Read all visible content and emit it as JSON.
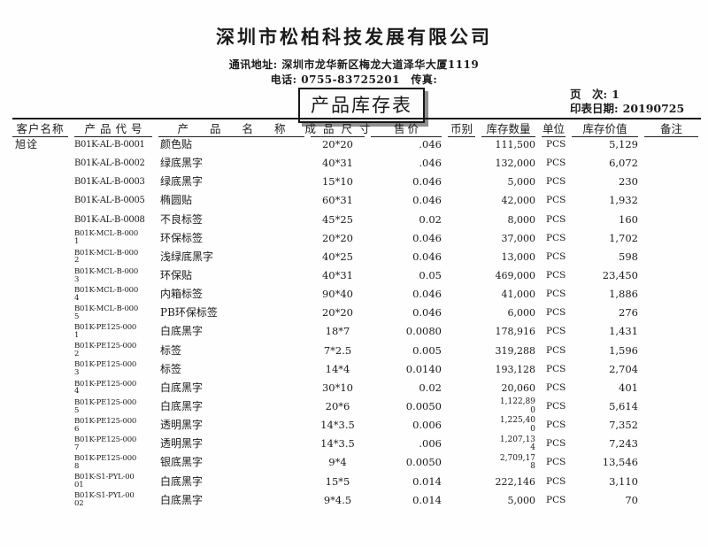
{
  "page": {
    "company": "深圳市松柏科技发展有限公司",
    "address_line": "通讯地址: 深圳市龙华新区梅龙大道泽华大厦1119",
    "phone_line": "电话: 0755-83725201　传真:",
    "title": "产品库存表",
    "page_no_label": "页　次:",
    "page_no": "1",
    "print_date_label": "印表日期:",
    "print_date": "20190725"
  },
  "table": {
    "columns": [
      {
        "key": "customer",
        "label": "客户名称"
      },
      {
        "key": "code",
        "label": "产品代号"
      },
      {
        "key": "name",
        "label": "产品名称"
      },
      {
        "key": "size",
        "label": "成品尺寸"
      },
      {
        "key": "price",
        "label": "售价"
      },
      {
        "key": "currency",
        "label": "币别"
      },
      {
        "key": "qty",
        "label": "库存数量"
      },
      {
        "key": "unit",
        "label": "单位"
      },
      {
        "key": "value",
        "label": "库存价值"
      },
      {
        "key": "remark",
        "label": "备注"
      }
    ],
    "rows": [
      {
        "customer": "旭诠",
        "code_lines": [
          "B01K-AL-B-0001"
        ],
        "name": "颜色贴",
        "size": "20*20",
        "price": ".046",
        "currency": "",
        "qty_lines": [
          "111,500"
        ],
        "unit": "PCS",
        "value": "5,129",
        "remark": ""
      },
      {
        "customer": "",
        "code_lines": [
          "B01K-AL-B-0002"
        ],
        "name": "绿底黑字",
        "size": "40*31",
        "price": ".046",
        "currency": "",
        "qty_lines": [
          "132,000"
        ],
        "unit": "PCS",
        "value": "6,072",
        "remark": ""
      },
      {
        "customer": "",
        "code_lines": [
          "B01K-AL-B-0003"
        ],
        "name": "绿底黑字",
        "size": "15*10",
        "price": "0.046",
        "currency": "",
        "qty_lines": [
          "5,000"
        ],
        "unit": "PCS",
        "value": "230",
        "remark": ""
      },
      {
        "customer": "",
        "code_lines": [
          "B01K-AL-B-0005"
        ],
        "name": "椭圆贴",
        "size": "60*31",
        "price": "0.046",
        "currency": "",
        "qty_lines": [
          "42,000"
        ],
        "unit": "PCS",
        "value": "1,932",
        "remark": ""
      },
      {
        "customer": "",
        "code_lines": [
          "B01K-AL-B-0008"
        ],
        "name": "不良标签",
        "size": "45*25",
        "price": "0.02",
        "currency": "",
        "qty_lines": [
          "8,000"
        ],
        "unit": "PCS",
        "value": "160",
        "remark": ""
      },
      {
        "customer": "",
        "code_lines": [
          "B01K-MCL-B-000",
          "1"
        ],
        "name": "环保标签",
        "size": "20*20",
        "price": "0.046",
        "currency": "",
        "qty_lines": [
          "37,000"
        ],
        "unit": "PCS",
        "value": "1,702",
        "remark": ""
      },
      {
        "customer": "",
        "code_lines": [
          "B01K-MCL-B-000",
          "2"
        ],
        "name": "浅绿底黑字",
        "size": "40*25",
        "price": "0.046",
        "currency": "",
        "qty_lines": [
          "13,000"
        ],
        "unit": "PCS",
        "value": "598",
        "remark": ""
      },
      {
        "customer": "",
        "code_lines": [
          "B01K-MCL-B-000",
          "3"
        ],
        "name": "环保贴",
        "size": "40*31",
        "price": "0.05",
        "currency": "",
        "qty_lines": [
          "469,000"
        ],
        "unit": "PCS",
        "value": "23,450",
        "remark": ""
      },
      {
        "customer": "",
        "code_lines": [
          "B01K-MCL-B-000",
          "4"
        ],
        "name": "内箱标签",
        "size": "90*40",
        "price": "0.046",
        "currency": "",
        "qty_lines": [
          "41,000"
        ],
        "unit": "PCS",
        "value": "1,886",
        "remark": ""
      },
      {
        "customer": "",
        "code_lines": [
          "B01K-MCL-B-000",
          "5"
        ],
        "name": "PB环保标签",
        "size": "20*20",
        "price": "0.046",
        "currency": "",
        "qty_lines": [
          "6,000"
        ],
        "unit": "PCS",
        "value": "276",
        "remark": ""
      },
      {
        "customer": "",
        "code_lines": [
          "B01K-PE125-000",
          "1"
        ],
        "name": "白底黑字",
        "size": "18*7",
        "price": "0.0080",
        "currency": "",
        "qty_lines": [
          "178,916"
        ],
        "unit": "PCS",
        "value": "1,431",
        "remark": ""
      },
      {
        "customer": "",
        "code_lines": [
          "B01K-PE125-000",
          "2"
        ],
        "name": "标签",
        "size": "7*2.5",
        "price": "0.005",
        "currency": "",
        "qty_lines": [
          "319,288"
        ],
        "unit": "PCS",
        "value": "1,596",
        "remark": ""
      },
      {
        "customer": "",
        "code_lines": [
          "B01K-PE125-000",
          "3"
        ],
        "name": "标签",
        "size": "14*4",
        "price": "0.0140",
        "currency": "",
        "qty_lines": [
          "193,128"
        ],
        "unit": "PCS",
        "value": "2,704",
        "remark": ""
      },
      {
        "customer": "",
        "code_lines": [
          "B01K-PE125-000",
          "4"
        ],
        "name": "白底黑字",
        "size": "30*10",
        "price": "0.02",
        "currency": "",
        "qty_lines": [
          "20,060"
        ],
        "unit": "PCS",
        "value": "401",
        "remark": ""
      },
      {
        "customer": "",
        "code_lines": [
          "B01K-PE125-000",
          "5"
        ],
        "name": "白底黑字",
        "size": "20*6",
        "price": "0.0050",
        "currency": "",
        "qty_lines": [
          "1,122,89",
          "0"
        ],
        "unit": "PCS",
        "value": "5,614",
        "remark": ""
      },
      {
        "customer": "",
        "code_lines": [
          "B01K-PE125-000",
          "6"
        ],
        "name": "透明黑字",
        "size": "14*3.5",
        "price": "0.006",
        "currency": "",
        "qty_lines": [
          "1,225,40",
          "0"
        ],
        "unit": "PCS",
        "value": "7,352",
        "remark": ""
      },
      {
        "customer": "",
        "code_lines": [
          "B01K-PE125-000",
          "7"
        ],
        "name": "透明黑字",
        "size": "14*3.5",
        "price": ".006",
        "currency": "",
        "qty_lines": [
          "1,207,13",
          "4"
        ],
        "unit": "PCS",
        "value": "7,243",
        "remark": ""
      },
      {
        "customer": "",
        "code_lines": [
          "B01K-PE125-000",
          "8"
        ],
        "name": "银底黑字",
        "size": "9*4",
        "price": "0.0050",
        "currency": "",
        "qty_lines": [
          "2,709,17",
          "8"
        ],
        "unit": "PCS",
        "value": "13,546",
        "remark": ""
      },
      {
        "customer": "",
        "code_lines": [
          "B01K-S1-PYL-00",
          "01"
        ],
        "name": "白底黑字",
        "size": "15*5",
        "price": "0.014",
        "currency": "",
        "qty_lines": [
          "222,146"
        ],
        "unit": "PCS",
        "value": "3,110",
        "remark": ""
      },
      {
        "customer": "",
        "code_lines": [
          "B01K-S1-PYL-00",
          "02"
        ],
        "name": "白底黑字",
        "size": "9*4.5",
        "price": "0.014",
        "currency": "",
        "qty_lines": [
          "5,000"
        ],
        "unit": "PCS",
        "value": "70",
        "remark": ""
      }
    ]
  }
}
